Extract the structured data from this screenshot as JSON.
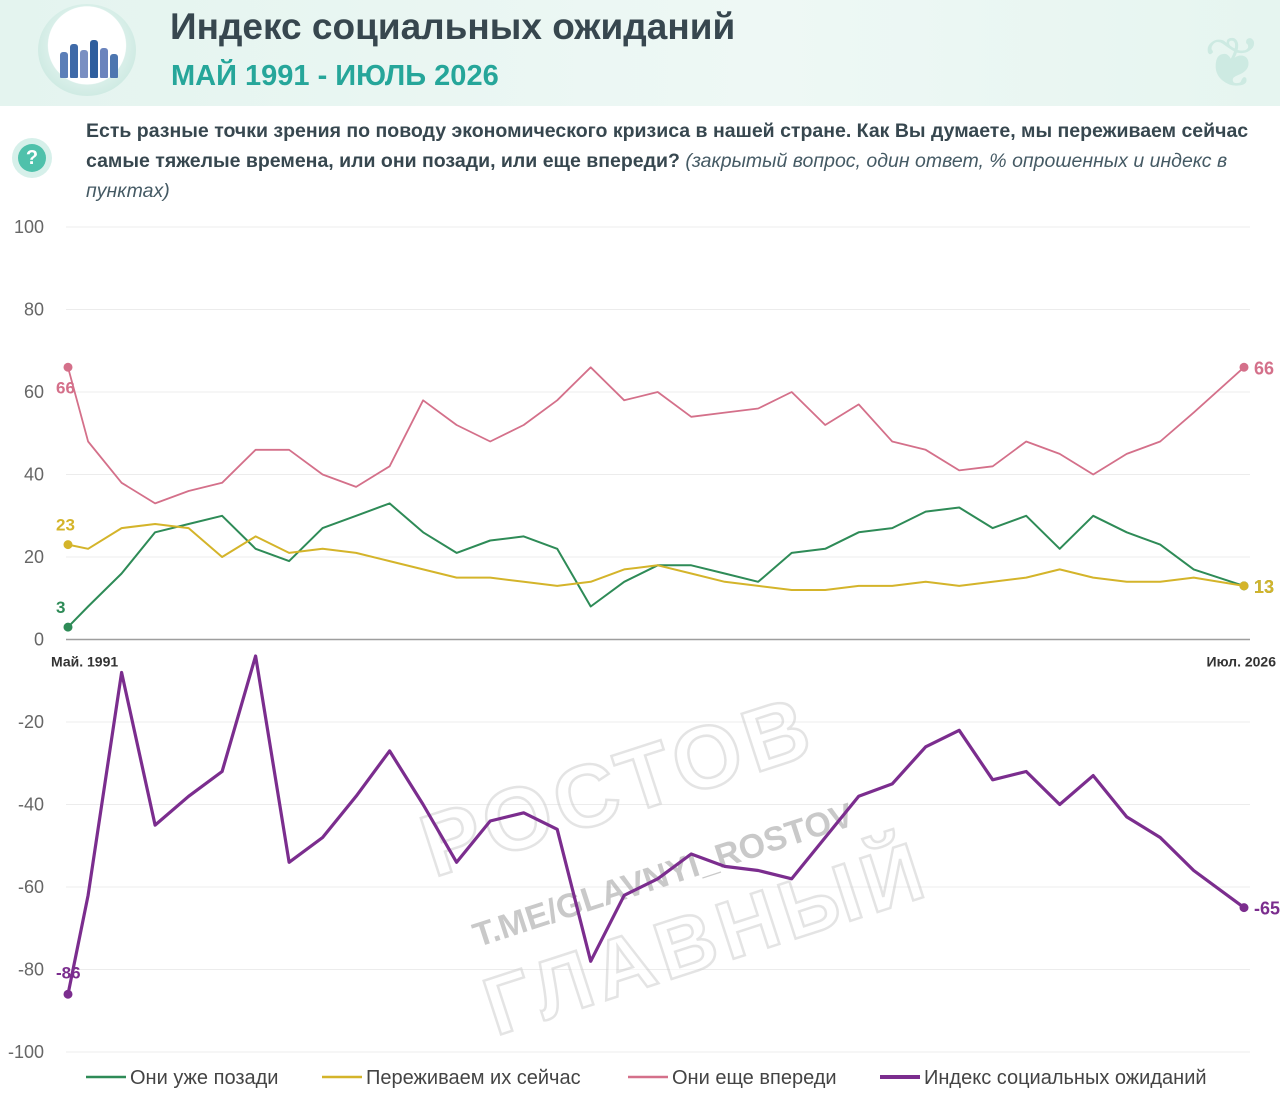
{
  "header": {
    "title": "Индекс социальных ожиданий",
    "subtitle": "МАЙ 1991 - ИЮЛЬ 2026",
    "question_icon": "?"
  },
  "question": {
    "text": "Есть разные точки зрения по поводу экономического кризиса в нашей стране. Как Вы думаете, мы переживаем сейчас самые тяжелые времена, или они позади, или еще впереди?",
    "note": "(закрытый вопрос, один ответ, % опрошенных и индекс в пунктах)"
  },
  "watermark": {
    "line1": "РОСТОВ",
    "line2": "T.ME/GLAVNYI_ROSTOV",
    "line3": "ГЛАВНЫЙ"
  },
  "colors": {
    "behind": "#2e8b57",
    "now": "#d4b42a",
    "ahead": "#d4708a",
    "index": "#7b2d8e"
  },
  "chart_data": {
    "type": "line",
    "x_start_label": "Май. 1991",
    "x_end_label": "Июл. 2026",
    "ylim": [
      -100,
      100
    ],
    "yticks": [
      100,
      80,
      60,
      40,
      20,
      0,
      -20,
      -40,
      -60,
      -80,
      -100
    ],
    "x": [
      1991.4,
      1992,
      1993,
      1994,
      1995,
      1996,
      1997,
      1998,
      1999,
      2000,
      2001,
      2002,
      2003,
      2004,
      2005,
      2006,
      2007,
      2008,
      2009,
      2010,
      2011,
      2012,
      2013,
      2014,
      2015,
      2016,
      2017,
      2018,
      2019,
      2020,
      2021,
      2022,
      2023,
      2024,
      2025,
      2026.5
    ],
    "series": [
      {
        "name": "Они уже позади",
        "key": "behind",
        "values": [
          3,
          8,
          16,
          26,
          28,
          30,
          22,
          19,
          27,
          30,
          33,
          26,
          21,
          24,
          25,
          22,
          8,
          14,
          18,
          18,
          16,
          14,
          21,
          22,
          26,
          27,
          31,
          32,
          27,
          30,
          22,
          30,
          26,
          23,
          17,
          13
        ],
        "start_label": "3",
        "end_label": "13"
      },
      {
        "name": "Переживаем их сейчас",
        "key": "now",
        "values": [
          23,
          22,
          27,
          28,
          27,
          20,
          25,
          21,
          22,
          21,
          19,
          17,
          15,
          15,
          14,
          13,
          14,
          17,
          18,
          16,
          14,
          13,
          12,
          12,
          13,
          13,
          14,
          13,
          14,
          15,
          17,
          15,
          14,
          14,
          15,
          13
        ],
        "start_label": "23",
        "end_label": "13"
      },
      {
        "name": "Они еще впереди",
        "key": "ahead",
        "values": [
          66,
          48,
          38,
          33,
          36,
          38,
          46,
          46,
          40,
          37,
          42,
          58,
          52,
          48,
          52,
          58,
          66,
          58,
          60,
          54,
          55,
          56,
          60,
          52,
          57,
          48,
          46,
          41,
          42,
          48,
          45,
          40,
          45,
          48,
          55,
          66
        ],
        "start_label": "66",
        "end_label": "66"
      },
      {
        "name": "Индекс социальных ожиданий",
        "key": "index",
        "values": [
          -86,
          -62,
          -8,
          -45,
          -38,
          -32,
          -4,
          -54,
          -48,
          -38,
          -27,
          -40,
          -54,
          -44,
          -42,
          -46,
          -78,
          -62,
          -58,
          -52,
          -55,
          -56,
          -58,
          -48,
          -38,
          -35,
          -26,
          -22,
          -34,
          -32,
          -40,
          -33,
          -43,
          -48,
          -56,
          -65
        ],
        "start_label": "-86",
        "end_label": "-65"
      }
    ]
  }
}
